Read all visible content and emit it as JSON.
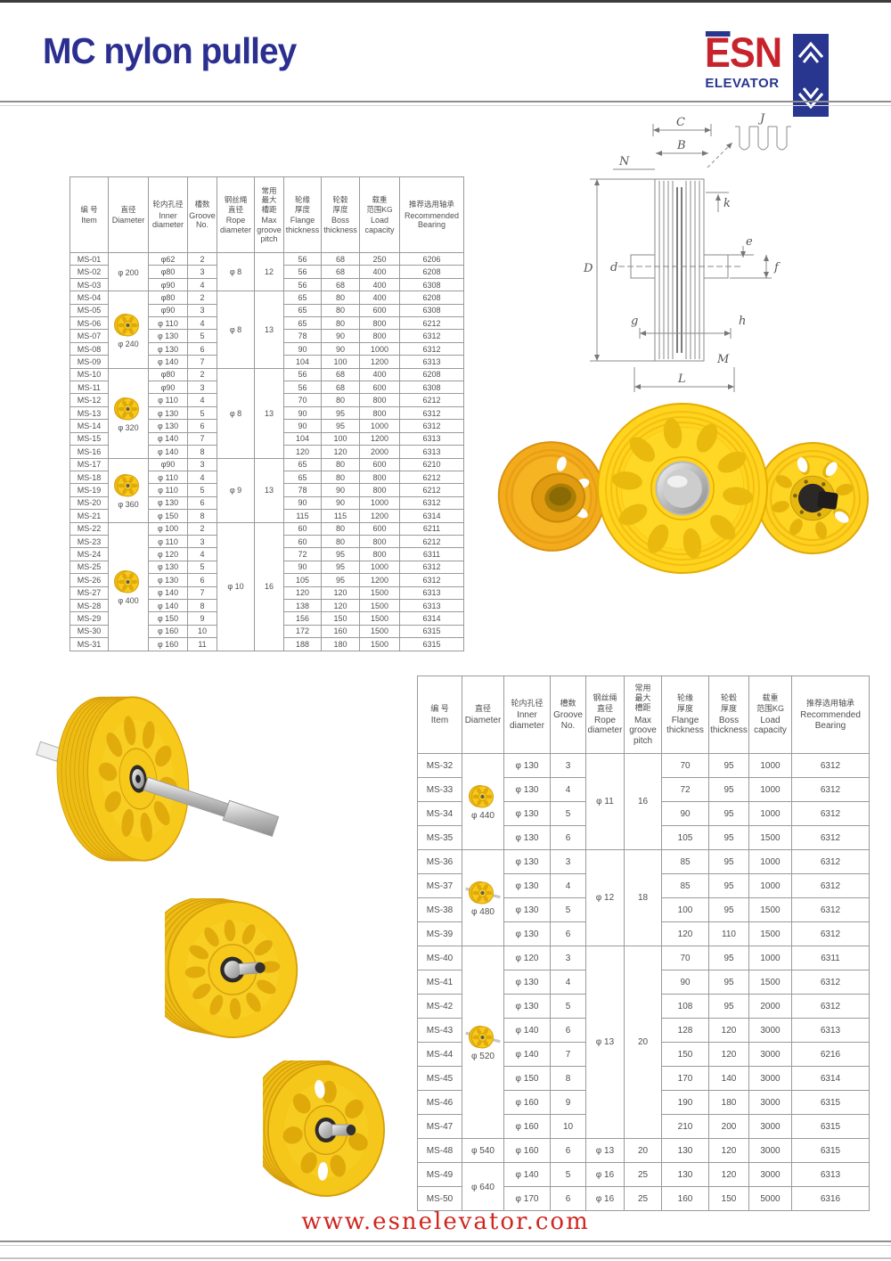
{
  "header": {
    "title": "MC nylon pulley"
  },
  "logo": {
    "text": "ESN",
    "subtitle": "ELEVATOR",
    "red": "#c8232c",
    "blue": "#28368f"
  },
  "footer": {
    "url": "www.esnelevator.com"
  },
  "colors": {
    "title_blue": "#2b2f90",
    "footer_red": "#d0261f",
    "pulley_yellow": "#f6c91a",
    "pulley_orange": "#f0a41b",
    "table_border": "#9a9a9a"
  },
  "columns": [
    {
      "cn": "编 号",
      "en": "Item"
    },
    {
      "cn": "直径",
      "en": "Diameter"
    },
    {
      "cn": "轮内孔径",
      "en": "Inner\ndiameter"
    },
    {
      "cn": "槽数",
      "en": "Groove\nNo."
    },
    {
      "cn": "钢丝绳\n直径",
      "en": "Rope\ndiameter"
    },
    {
      "cn": "常用\n最大\n槽距",
      "en": "Max\ngroove\npitch"
    },
    {
      "cn": "轮缘\n厚度",
      "en": "Flange\nthickness"
    },
    {
      "cn": "轮毂\n厚度",
      "en": "Boss\nthickness"
    },
    {
      "cn": "载重\n范围KG",
      "en": "Load\ncapacity"
    },
    {
      "cn": "推荐选用轴承",
      "en": "Recommended\nBearing"
    }
  ],
  "table1": {
    "groups": [
      {
        "diameter": "φ 200",
        "image": null,
        "rope": "φ 8",
        "pitch": "12",
        "rows": [
          [
            "MS-01",
            "φ62",
            "2",
            "56",
            "68",
            "250",
            "6206"
          ],
          [
            "MS-02",
            "φ80",
            "3",
            "56",
            "68",
            "400",
            "6208"
          ],
          [
            "MS-03",
            "φ90",
            "4",
            "56",
            "68",
            "400",
            "6308"
          ]
        ]
      },
      {
        "diameter": "φ 240",
        "image": "pulley-wheel",
        "rope": "φ 8",
        "pitch": "13",
        "rows": [
          [
            "MS-04",
            "φ80",
            "2",
            "65",
            "80",
            "400",
            "6208"
          ],
          [
            "MS-05",
            "φ90",
            "3",
            "65",
            "80",
            "600",
            "6308"
          ],
          [
            "MS-06",
            "φ 110",
            "4",
            "65",
            "80",
            "800",
            "6212"
          ],
          [
            "MS-07",
            "φ 130",
            "5",
            "78",
            "90",
            "800",
            "6312"
          ],
          [
            "MS-08",
            "φ 130",
            "6",
            "90",
            "90",
            "1000",
            "6312"
          ],
          [
            "MS-09",
            "φ 140",
            "7",
            "104",
            "100",
            "1200",
            "6313"
          ]
        ]
      },
      {
        "diameter": "φ 320",
        "image": "pulley-wheel",
        "rope": "φ 8",
        "pitch": "13",
        "rows": [
          [
            "MS-10",
            "φ80",
            "2",
            "56",
            "68",
            "400",
            "6208"
          ],
          [
            "MS-11",
            "φ90",
            "3",
            "56",
            "68",
            "600",
            "6308"
          ],
          [
            "MS-12",
            "φ 110",
            "4",
            "70",
            "80",
            "800",
            "6212"
          ],
          [
            "MS-13",
            "φ 130",
            "5",
            "90",
            "95",
            "800",
            "6312"
          ],
          [
            "MS-14",
            "φ 130",
            "6",
            "90",
            "95",
            "1000",
            "6312"
          ],
          [
            "MS-15",
            "φ 140",
            "7",
            "104",
            "100",
            "1200",
            "6313"
          ],
          [
            "MS-16",
            "φ 140",
            "8",
            "120",
            "120",
            "2000",
            "6313"
          ]
        ]
      },
      {
        "diameter": "φ 360",
        "image": "pulley-wheel",
        "rope": "φ 9",
        "pitch": "13",
        "rows": [
          [
            "MS-17",
            "φ90",
            "3",
            "65",
            "80",
            "600",
            "6210"
          ],
          [
            "MS-18",
            "φ 110",
            "4",
            "65",
            "80",
            "800",
            "6212"
          ],
          [
            "MS-19",
            "φ 110",
            "5",
            "78",
            "90",
            "800",
            "6212"
          ],
          [
            "MS-20",
            "φ 130",
            "6",
            "90",
            "90",
            "1000",
            "6312"
          ],
          [
            "MS-21",
            "φ 150",
            "8",
            "115",
            "115",
            "1200",
            "6314"
          ]
        ]
      },
      {
        "diameter": "φ 400",
        "image": "pulley-wheel",
        "rope": "φ 10",
        "pitch": "16",
        "rows": [
          [
            "MS-22",
            "φ 100",
            "2",
            "60",
            "80",
            "600",
            "6211"
          ],
          [
            "MS-23",
            "φ 110",
            "3",
            "60",
            "80",
            "800",
            "6212"
          ],
          [
            "MS-24",
            "φ 120",
            "4",
            "72",
            "95",
            "800",
            "6311"
          ],
          [
            "MS-25",
            "φ 130",
            "5",
            "90",
            "95",
            "1000",
            "6312"
          ],
          [
            "MS-26",
            "φ 130",
            "6",
            "105",
            "95",
            "1200",
            "6312"
          ],
          [
            "MS-27",
            "φ 140",
            "7",
            "120",
            "120",
            "1500",
            "6313"
          ],
          [
            "MS-28",
            "φ 140",
            "8",
            "138",
            "120",
            "1500",
            "6313"
          ],
          [
            "MS-29",
            "φ 150",
            "9",
            "156",
            "150",
            "1500",
            "6314"
          ],
          [
            "MS-30",
            "φ 160",
            "10",
            "172",
            "160",
            "1500",
            "6315"
          ],
          [
            "MS-31",
            "φ 160",
            "11",
            "188",
            "180",
            "1500",
            "6315"
          ]
        ]
      }
    ]
  },
  "table2": {
    "groups": [
      {
        "diameter": "φ 440",
        "image": "pulley-wheel",
        "rope": "φ 11",
        "pitch": "16",
        "rows": [
          [
            "MS-32",
            "φ 130",
            "3",
            "70",
            "95",
            "1000",
            "6312"
          ],
          [
            "MS-33",
            "φ 130",
            "4",
            "72",
            "95",
            "1000",
            "6312"
          ],
          [
            "MS-34",
            "φ 130",
            "5",
            "90",
            "95",
            "1000",
            "6312"
          ],
          [
            "MS-35",
            "φ 130",
            "6",
            "105",
            "95",
            "1500",
            "6312"
          ]
        ]
      },
      {
        "diameter": "φ 480",
        "image": "pulley-with-shaft",
        "rope": "φ 12",
        "pitch": "18",
        "rows": [
          [
            "MS-36",
            "φ 130",
            "3",
            "85",
            "95",
            "1000",
            "6312"
          ],
          [
            "MS-37",
            "φ 130",
            "4",
            "85",
            "95",
            "1000",
            "6312"
          ],
          [
            "MS-38",
            "φ 130",
            "5",
            "100",
            "95",
            "1500",
            "6312"
          ],
          [
            "MS-39",
            "φ 130",
            "6",
            "120",
            "110",
            "1500",
            "6312"
          ]
        ]
      },
      {
        "diameter": "φ 520",
        "image": "pulley-with-shaft",
        "rope": "φ 13",
        "pitch": "20",
        "rows": [
          [
            "MS-40",
            "φ 120",
            "3",
            "70",
            "95",
            "1000",
            "6311"
          ],
          [
            "MS-41",
            "φ 130",
            "4",
            "90",
            "95",
            "1500",
            "6312"
          ],
          [
            "MS-42",
            "φ 130",
            "5",
            "108",
            "95",
            "2000",
            "6312"
          ],
          [
            "MS-43",
            "φ 140",
            "6",
            "128",
            "120",
            "3000",
            "6313"
          ],
          [
            "MS-44",
            "φ 140",
            "7",
            "150",
            "120",
            "3000",
            "6216"
          ],
          [
            "MS-45",
            "φ 150",
            "8",
            "170",
            "140",
            "3000",
            "6314"
          ],
          [
            "MS-46",
            "φ 160",
            "9",
            "190",
            "180",
            "3000",
            "6315"
          ],
          [
            "MS-47",
            "φ 160",
            "10",
            "210",
            "200",
            "3000",
            "6315"
          ]
        ]
      },
      {
        "diameter": "φ 540",
        "image": null,
        "rope": null,
        "pitch": null,
        "rows": [
          [
            "MS-48",
            "φ 160",
            "6",
            "130",
            "120",
            "3000",
            "6315",
            "φ 13",
            "20"
          ]
        ]
      },
      {
        "diameter": "φ 640",
        "image": null,
        "rope": null,
        "pitch": null,
        "rows": [
          [
            "MS-49",
            "φ 140",
            "5",
            "130",
            "120",
            "3000",
            "6313",
            "φ 16",
            "25"
          ],
          [
            "MS-50",
            "φ 170",
            "6",
            "160",
            "150",
            "5000",
            "6316",
            "φ 16",
            "25"
          ]
        ]
      }
    ]
  },
  "diagram": {
    "labels": [
      "C",
      "B",
      "N",
      "J",
      "k",
      "e",
      "f",
      "d",
      "D",
      "g",
      "h",
      "M",
      "L"
    ]
  },
  "images": {
    "photo_main": "three-yellow-nylon-pulleys",
    "photo_shaft": "pulley-with-through-shaft",
    "photo_mid": "pulley-with-bearing-stub",
    "photo_low": "pulley-with-bearing-stub",
    "diagram": "pulley-cross-section-diagram"
  }
}
